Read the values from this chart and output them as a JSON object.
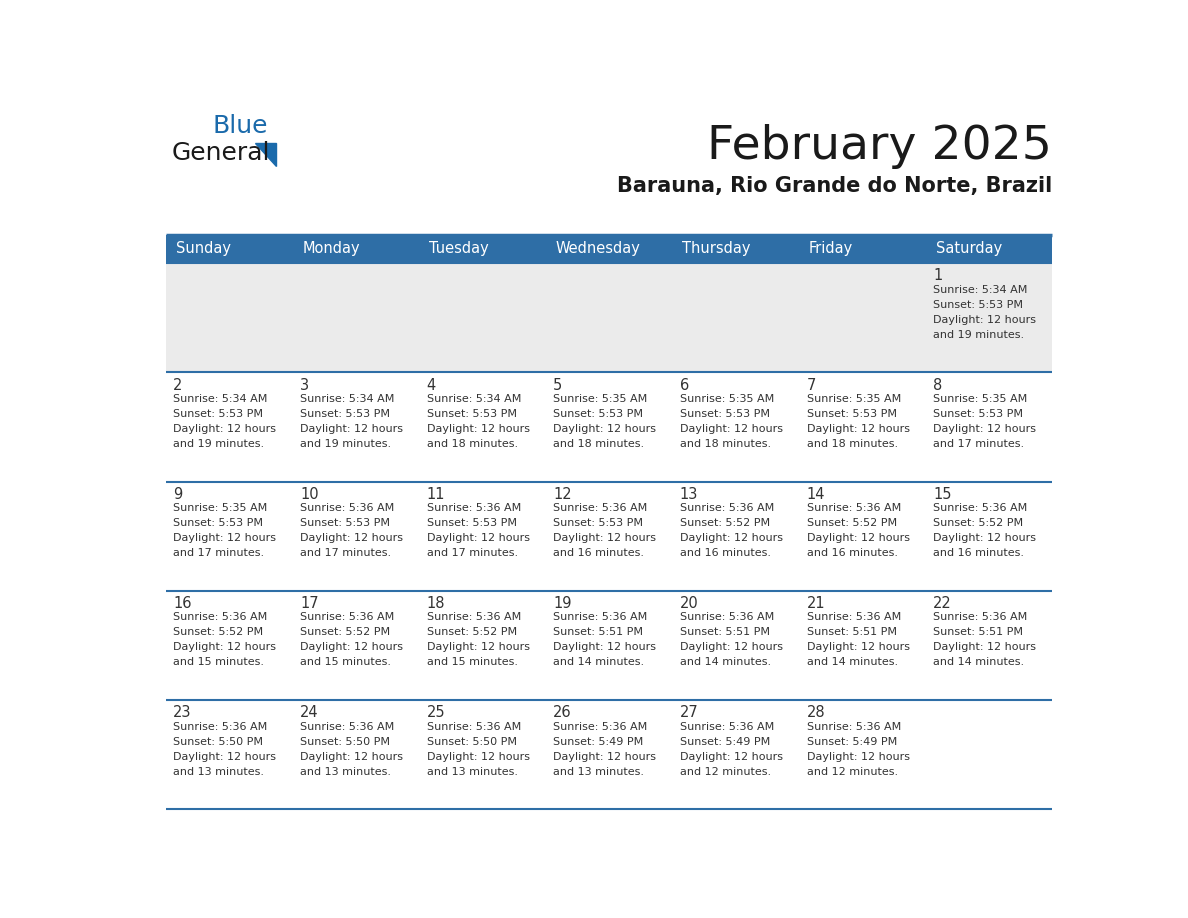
{
  "title": "February 2025",
  "subtitle": "Barauna, Rio Grande do Norte, Brazil",
  "header_color": "#2E6EA6",
  "header_text_color": "#FFFFFF",
  "row0_bg": "#EBEBEB",
  "row_bg": "#FFFFFF",
  "day_number_color": "#333333",
  "text_color": "#333333",
  "line_color": "#2E6EA6",
  "days_of_week": [
    "Sunday",
    "Monday",
    "Tuesday",
    "Wednesday",
    "Thursday",
    "Friday",
    "Saturday"
  ],
  "logo_color1": "#1a1a1a",
  "logo_color2": "#1a6aab",
  "triangle_color": "#1a6aab",
  "calendar_data": [
    [
      {
        "day": "",
        "sunrise": "",
        "sunset": "",
        "daylight": ""
      },
      {
        "day": "",
        "sunrise": "",
        "sunset": "",
        "daylight": ""
      },
      {
        "day": "",
        "sunrise": "",
        "sunset": "",
        "daylight": ""
      },
      {
        "day": "",
        "sunrise": "",
        "sunset": "",
        "daylight": ""
      },
      {
        "day": "",
        "sunrise": "",
        "sunset": "",
        "daylight": ""
      },
      {
        "day": "",
        "sunrise": "",
        "sunset": "",
        "daylight": ""
      },
      {
        "day": "1",
        "sunrise": "5:34 AM",
        "sunset": "5:53 PM",
        "daylight": "12 hours and 19 minutes."
      }
    ],
    [
      {
        "day": "2",
        "sunrise": "5:34 AM",
        "sunset": "5:53 PM",
        "daylight": "12 hours and 19 minutes."
      },
      {
        "day": "3",
        "sunrise": "5:34 AM",
        "sunset": "5:53 PM",
        "daylight": "12 hours and 19 minutes."
      },
      {
        "day": "4",
        "sunrise": "5:34 AM",
        "sunset": "5:53 PM",
        "daylight": "12 hours and 18 minutes."
      },
      {
        "day": "5",
        "sunrise": "5:35 AM",
        "sunset": "5:53 PM",
        "daylight": "12 hours and 18 minutes."
      },
      {
        "day": "6",
        "sunrise": "5:35 AM",
        "sunset": "5:53 PM",
        "daylight": "12 hours and 18 minutes."
      },
      {
        "day": "7",
        "sunrise": "5:35 AM",
        "sunset": "5:53 PM",
        "daylight": "12 hours and 18 minutes."
      },
      {
        "day": "8",
        "sunrise": "5:35 AM",
        "sunset": "5:53 PM",
        "daylight": "12 hours and 17 minutes."
      }
    ],
    [
      {
        "day": "9",
        "sunrise": "5:35 AM",
        "sunset": "5:53 PM",
        "daylight": "12 hours and 17 minutes."
      },
      {
        "day": "10",
        "sunrise": "5:36 AM",
        "sunset": "5:53 PM",
        "daylight": "12 hours and 17 minutes."
      },
      {
        "day": "11",
        "sunrise": "5:36 AM",
        "sunset": "5:53 PM",
        "daylight": "12 hours and 17 minutes."
      },
      {
        "day": "12",
        "sunrise": "5:36 AM",
        "sunset": "5:53 PM",
        "daylight": "12 hours and 16 minutes."
      },
      {
        "day": "13",
        "sunrise": "5:36 AM",
        "sunset": "5:52 PM",
        "daylight": "12 hours and 16 minutes."
      },
      {
        "day": "14",
        "sunrise": "5:36 AM",
        "sunset": "5:52 PM",
        "daylight": "12 hours and 16 minutes."
      },
      {
        "day": "15",
        "sunrise": "5:36 AM",
        "sunset": "5:52 PM",
        "daylight": "12 hours and 16 minutes."
      }
    ],
    [
      {
        "day": "16",
        "sunrise": "5:36 AM",
        "sunset": "5:52 PM",
        "daylight": "12 hours and 15 minutes."
      },
      {
        "day": "17",
        "sunrise": "5:36 AM",
        "sunset": "5:52 PM",
        "daylight": "12 hours and 15 minutes."
      },
      {
        "day": "18",
        "sunrise": "5:36 AM",
        "sunset": "5:52 PM",
        "daylight": "12 hours and 15 minutes."
      },
      {
        "day": "19",
        "sunrise": "5:36 AM",
        "sunset": "5:51 PM",
        "daylight": "12 hours and 14 minutes."
      },
      {
        "day": "20",
        "sunrise": "5:36 AM",
        "sunset": "5:51 PM",
        "daylight": "12 hours and 14 minutes."
      },
      {
        "day": "21",
        "sunrise": "5:36 AM",
        "sunset": "5:51 PM",
        "daylight": "12 hours and 14 minutes."
      },
      {
        "day": "22",
        "sunrise": "5:36 AM",
        "sunset": "5:51 PM",
        "daylight": "12 hours and 14 minutes."
      }
    ],
    [
      {
        "day": "23",
        "sunrise": "5:36 AM",
        "sunset": "5:50 PM",
        "daylight": "12 hours and 13 minutes."
      },
      {
        "day": "24",
        "sunrise": "5:36 AM",
        "sunset": "5:50 PM",
        "daylight": "12 hours and 13 minutes."
      },
      {
        "day": "25",
        "sunrise": "5:36 AM",
        "sunset": "5:50 PM",
        "daylight": "12 hours and 13 minutes."
      },
      {
        "day": "26",
        "sunrise": "5:36 AM",
        "sunset": "5:49 PM",
        "daylight": "12 hours and 13 minutes."
      },
      {
        "day": "27",
        "sunrise": "5:36 AM",
        "sunset": "5:49 PM",
        "daylight": "12 hours and 12 minutes."
      },
      {
        "day": "28",
        "sunrise": "5:36 AM",
        "sunset": "5:49 PM",
        "daylight": "12 hours and 12 minutes."
      },
      {
        "day": "",
        "sunrise": "",
        "sunset": "",
        "daylight": ""
      }
    ]
  ]
}
